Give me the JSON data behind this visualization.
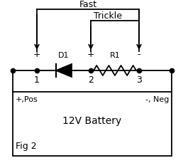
{
  "bg_color": "#ffffff",
  "wire_color": "#000000",
  "fig_width": 2.58,
  "fig_height": 2.3,
  "dpi": 100,
  "fast_label": "Fast",
  "trickle_label": "Trickle",
  "battery_label": "12V Battery",
  "fig_label": "Fig 2",
  "pos_label": "+,Pos",
  "neg_label": "-, Neg",
  "d1_label": "D1",
  "r1_label": "R1",
  "plus1": "+",
  "plus2": "+",
  "minus3": "-"
}
